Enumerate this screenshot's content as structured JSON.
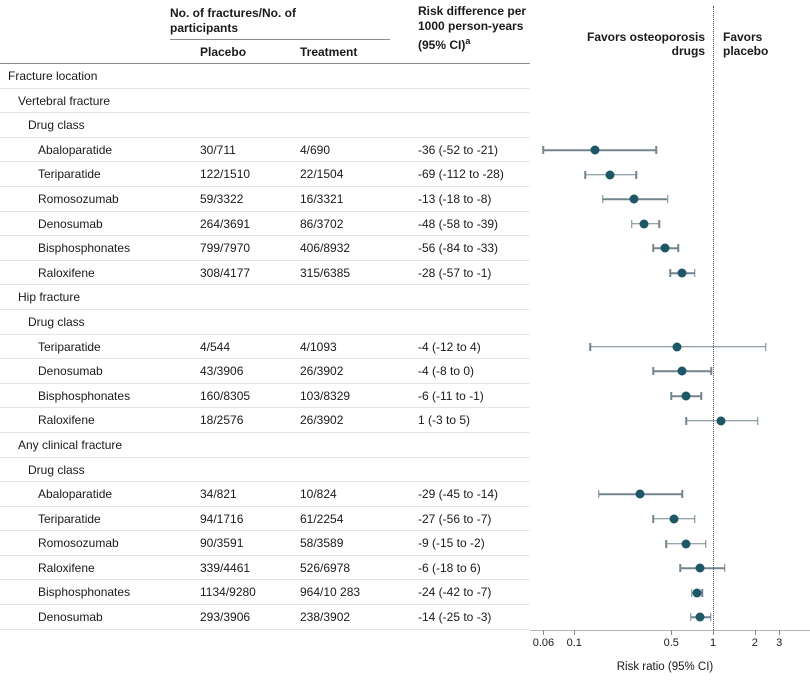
{
  "header": {
    "group": "No. of fractures/No. of participants",
    "placebo": "Placebo",
    "treatment": "Treatment",
    "risk_diff_line": "Risk difference per 1000 person-years (95% CI)",
    "risk_diff_sup": "a",
    "favors_left": "Favors osteoporosis drugs",
    "favors_right": "Favors placebo"
  },
  "axis": {
    "label": "Risk ratio (95% CI)"
  },
  "colors": {
    "marker": "#1e5866",
    "ci_line": "#72858f",
    "reference_line": "#4a4a4a",
    "row_divider": "#e4e4e4",
    "header_rule": "#8c8c8c"
  },
  "chart_data": {
    "type": "forest",
    "x_scale": "log",
    "xlabel": "Risk ratio (95% CI)",
    "x_ticks": [
      0.06,
      0.1,
      0.5,
      1,
      2,
      3
    ],
    "x_range": [
      0.048,
      5.0
    ],
    "reference_line": 1,
    "legend": {
      "left_of_reference": "Favors osteoporosis drugs",
      "right_of_reference": "Favors placebo"
    },
    "columns": [
      "Fracture location",
      "Placebo",
      "Treatment",
      "Risk difference per 1000 person-years (95% CI)"
    ],
    "note": "rr and ci are risk-ratio point estimates and 95% CIs read from the plotted markers (log scale)",
    "rows": [
      {
        "type": "section",
        "indent": 0,
        "label": "Fracture location"
      },
      {
        "type": "section",
        "indent": 1,
        "label": "Vertebral fracture"
      },
      {
        "type": "section",
        "indent": 2,
        "label": "Drug class"
      },
      {
        "type": "data",
        "indent": 3,
        "label": "Abaloparatide",
        "placebo": "30/711",
        "treatment": "4/690",
        "risk_diff": "-36 (-52 to -21)",
        "rr": 0.14,
        "ci": [
          0.06,
          0.39
        ]
      },
      {
        "type": "data",
        "indent": 3,
        "label": "Teriparatide",
        "placebo": "122/1510",
        "treatment": "22/1504",
        "risk_diff": "-69 (-112 to -28)",
        "rr": 0.18,
        "ci": [
          0.12,
          0.28
        ]
      },
      {
        "type": "data",
        "indent": 3,
        "label": "Romosozumab",
        "placebo": "59/3322",
        "treatment": "16/3321",
        "risk_diff": "-13 (-18 to -8)",
        "rr": 0.27,
        "ci": [
          0.16,
          0.47
        ]
      },
      {
        "type": "data",
        "indent": 3,
        "label": "Denosumab",
        "placebo": "264/3691",
        "treatment": "86/3702",
        "risk_diff": "-48 (-58 to -39)",
        "rr": 0.32,
        "ci": [
          0.26,
          0.41
        ]
      },
      {
        "type": "data",
        "indent": 3,
        "label": "Bisphosphonates",
        "placebo": "799/7970",
        "treatment": "406/8932",
        "risk_diff": "-56 (-84 to -33)",
        "rr": 0.45,
        "ci": [
          0.37,
          0.56
        ]
      },
      {
        "type": "data",
        "indent": 3,
        "label": "Raloxifene",
        "placebo": "308/4177",
        "treatment": "315/6385",
        "risk_diff": "-28 (-57 to -1)",
        "rr": 0.6,
        "ci": [
          0.49,
          0.74
        ]
      },
      {
        "type": "section",
        "indent": 1,
        "label": "Hip fracture"
      },
      {
        "type": "section",
        "indent": 2,
        "label": "Drug class"
      },
      {
        "type": "data",
        "indent": 3,
        "label": "Teriparatide",
        "placebo": "4/544",
        "treatment": "4/1093",
        "risk_diff": "-4 (-12 to 4)",
        "rr": 0.55,
        "ci": [
          0.13,
          2.4
        ]
      },
      {
        "type": "data",
        "indent": 3,
        "label": "Denosumab",
        "placebo": "43/3906",
        "treatment": "26/3902",
        "risk_diff": "-4 (-8 to 0)",
        "rr": 0.6,
        "ci": [
          0.37,
          0.97
        ]
      },
      {
        "type": "data",
        "indent": 3,
        "label": "Bisphosphonates",
        "placebo": "160/8305",
        "treatment": "103/8329",
        "risk_diff": "-6 (-11 to -1)",
        "rr": 0.64,
        "ci": [
          0.5,
          0.82
        ]
      },
      {
        "type": "data",
        "indent": 3,
        "label": "Raloxifene",
        "placebo": "18/2576",
        "treatment": "26/3902",
        "risk_diff": "1 (-3 to 5)",
        "rr": 1.15,
        "ci": [
          0.64,
          2.1
        ]
      },
      {
        "type": "section",
        "indent": 1,
        "label": "Any clinical fracture"
      },
      {
        "type": "section",
        "indent": 2,
        "label": "Drug class"
      },
      {
        "type": "data",
        "indent": 3,
        "label": "Abaloparatide",
        "placebo": "34/821",
        "treatment": "10/824",
        "risk_diff": "-29 (-45 to -14)",
        "rr": 0.3,
        "ci": [
          0.15,
          0.6
        ]
      },
      {
        "type": "data",
        "indent": 3,
        "label": "Teriparatide",
        "placebo": "94/1716",
        "treatment": "61/2254",
        "risk_diff": "-27 (-56 to -7)",
        "rr": 0.52,
        "ci": [
          0.37,
          0.74
        ]
      },
      {
        "type": "data",
        "indent": 3,
        "label": "Romosozumab",
        "placebo": "90/3591",
        "treatment": "58/3589",
        "risk_diff": "-9 (-15 to -2)",
        "rr": 0.64,
        "ci": [
          0.46,
          0.89
        ]
      },
      {
        "type": "data",
        "indent": 3,
        "label": "Raloxifene",
        "placebo": "339/4461",
        "treatment": "526/6978",
        "risk_diff": "-6 (-18 to 6)",
        "rr": 0.8,
        "ci": [
          0.58,
          1.22
        ]
      },
      {
        "type": "data",
        "indent": 3,
        "label": "Bisphosphonates",
        "placebo": "1134/9280",
        "treatment": "964/10 283",
        "risk_diff": "-24 (-42 to -7)",
        "rr": 0.77,
        "ci": [
          0.7,
          0.84
        ]
      },
      {
        "type": "data",
        "indent": 3,
        "label": "Denosumab",
        "placebo": "293/3906",
        "treatment": "238/3902",
        "risk_diff": "-14 (-25 to -3)",
        "rr": 0.81,
        "ci": [
          0.69,
          0.96
        ]
      }
    ]
  }
}
